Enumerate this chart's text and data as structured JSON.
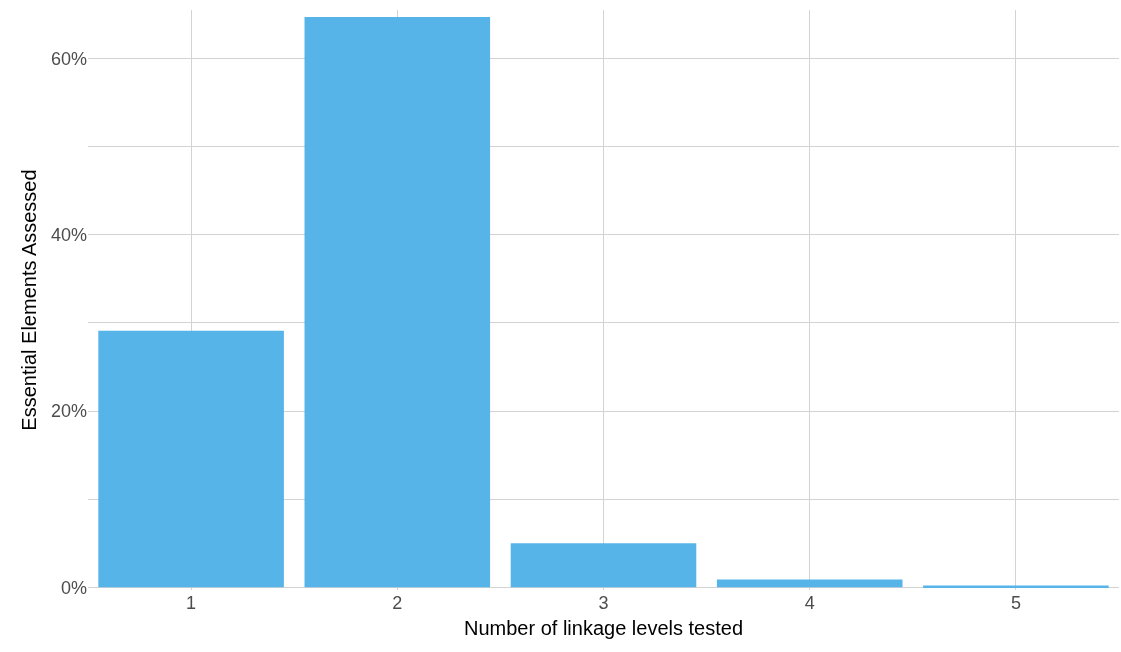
{
  "chart_data": {
    "type": "bar",
    "xlabel": "Number of linkage levels tested",
    "ylabel": "Essential Elements Assessed",
    "categories": [
      "1",
      "2",
      "3",
      "4",
      "5"
    ],
    "values": [
      29.1,
      64.7,
      5.0,
      0.9,
      0.2
    ],
    "color": "#56b4e9",
    "ylim": [
      -0.3,
      65.5
    ],
    "yticks": [
      {
        "value": 0,
        "label": "0%"
      },
      {
        "value": 10,
        "label": null
      },
      {
        "value": 20,
        "label": "20%"
      },
      {
        "value": 30,
        "label": null
      },
      {
        "value": 40,
        "label": "40%"
      },
      {
        "value": 50,
        "label": null
      },
      {
        "value": 60,
        "label": "60%"
      }
    ],
    "grid": true
  }
}
